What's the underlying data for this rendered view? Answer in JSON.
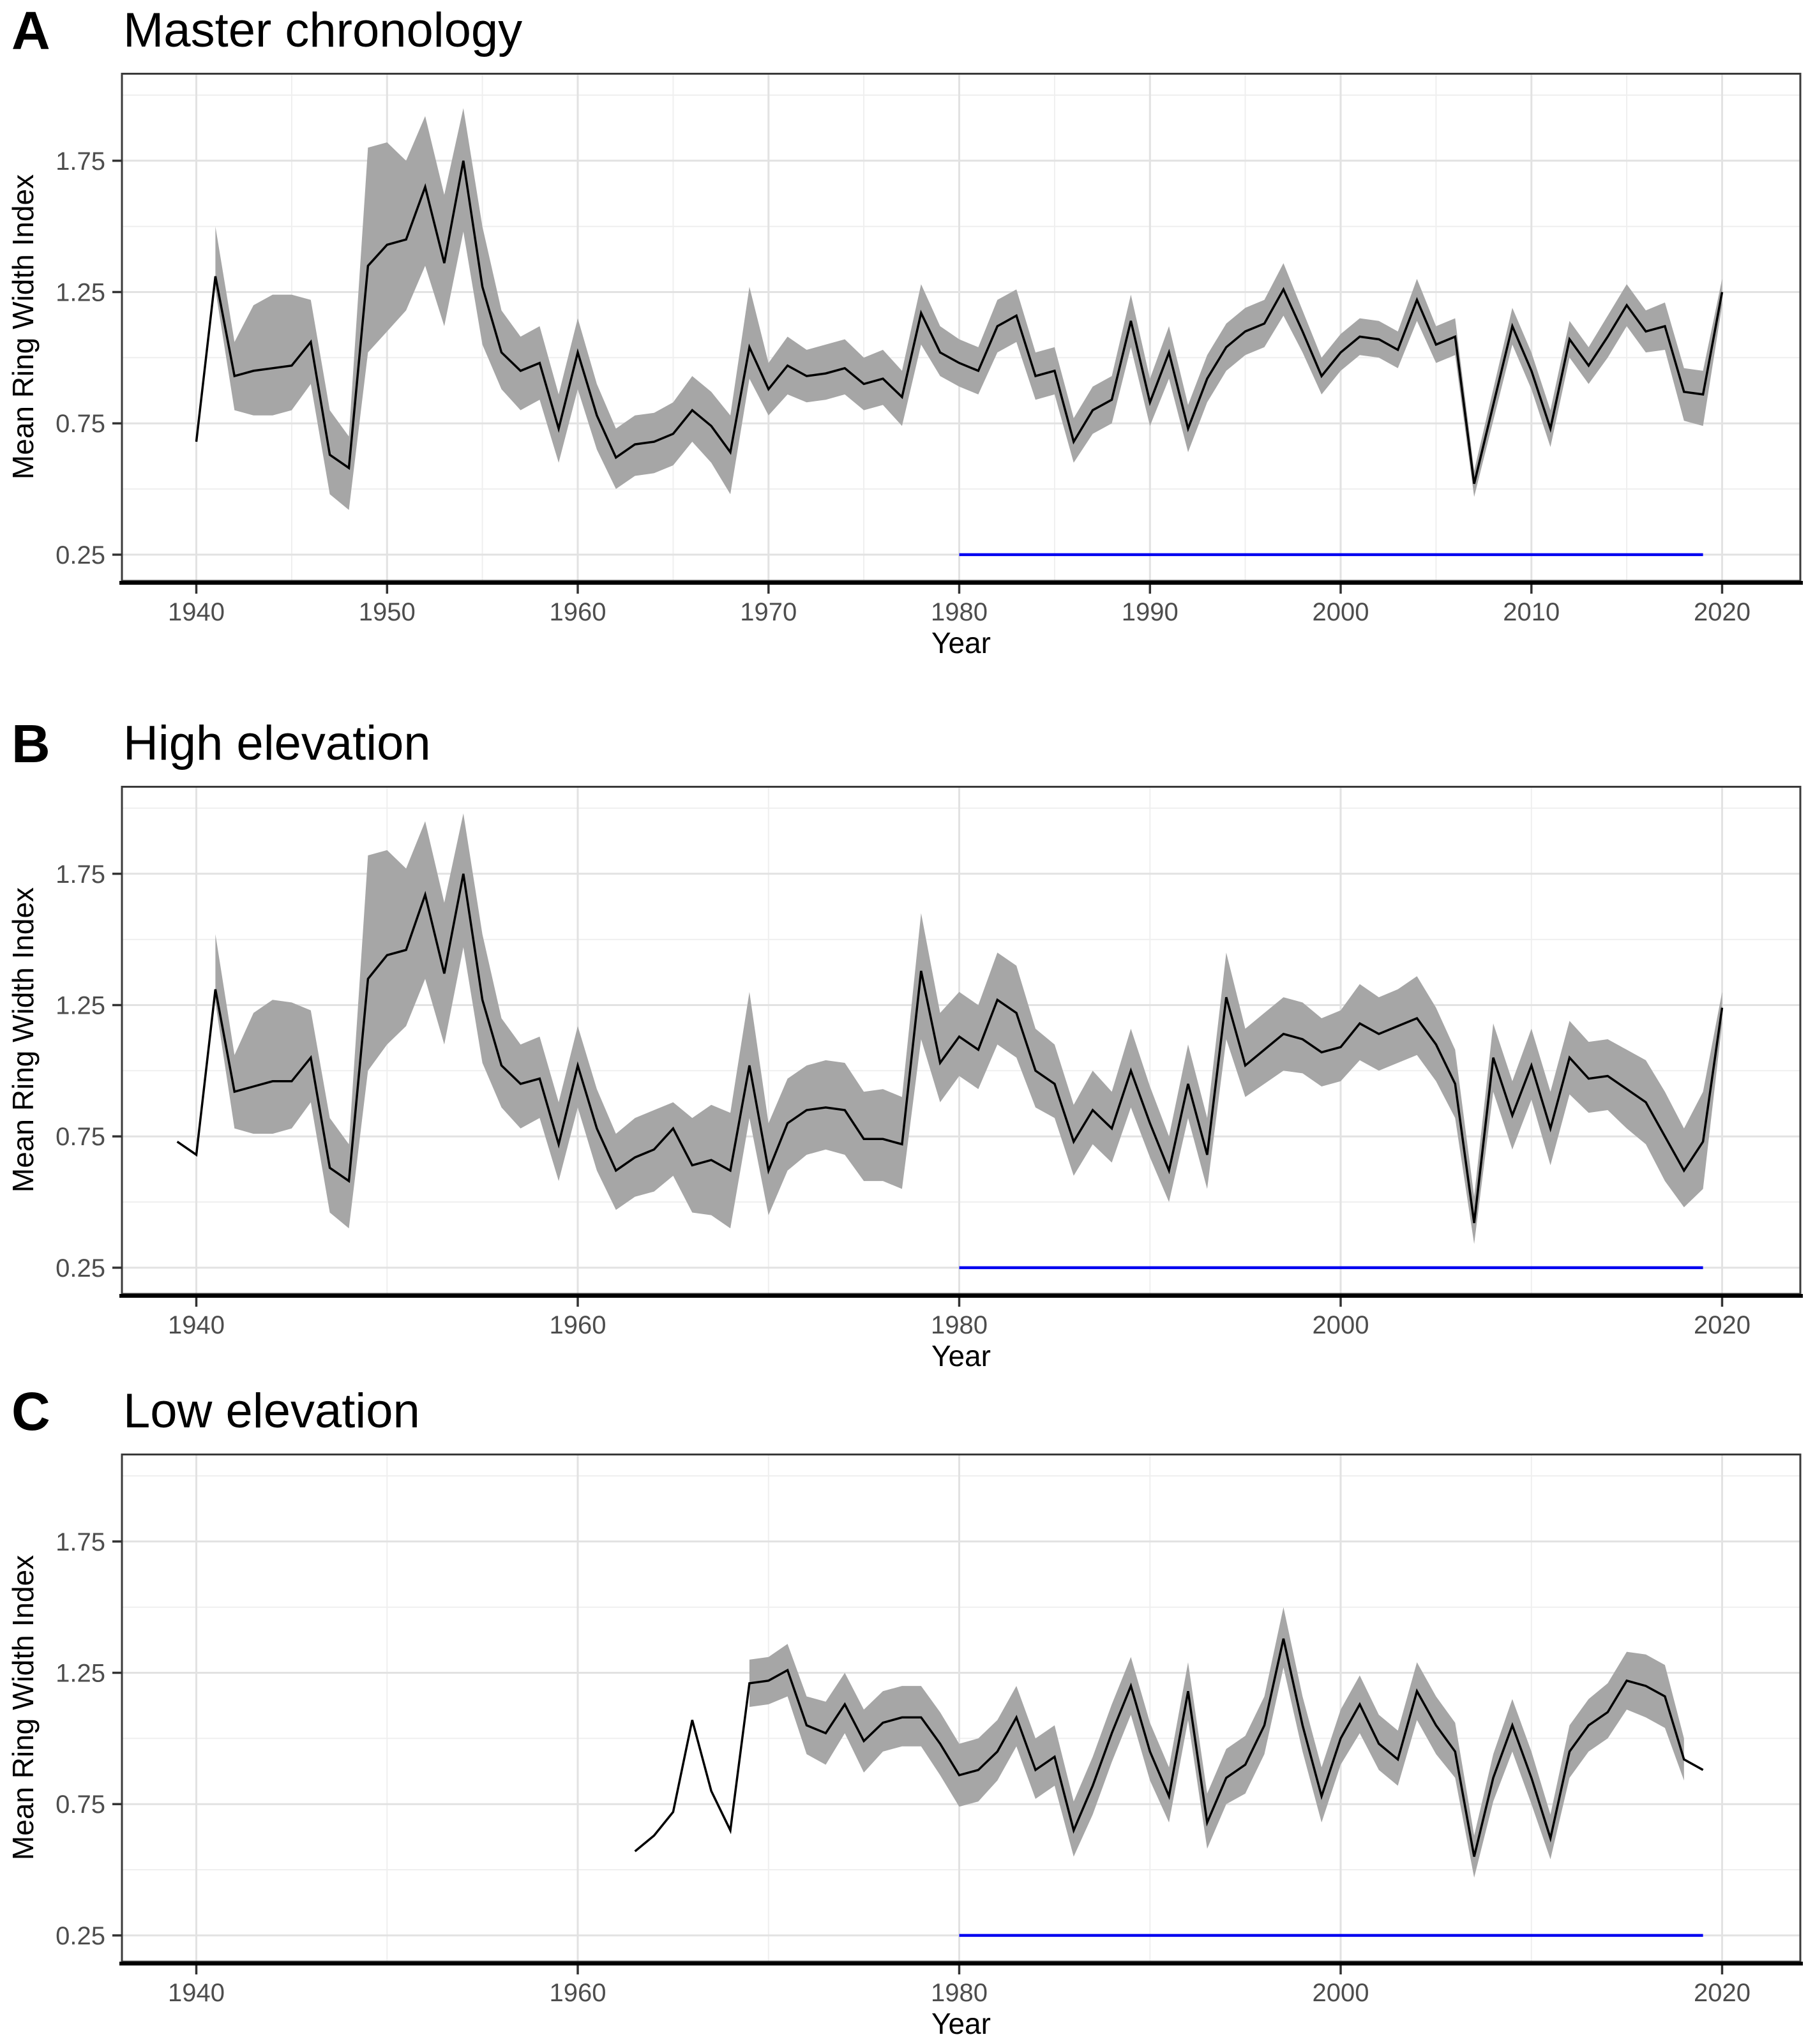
{
  "styles": {
    "background": "#ffffff",
    "line_color": "#000000",
    "ribbon_color": "#a6a6a6",
    "reference_color": "#0000f0",
    "grid_major": "#e2e2e2",
    "grid_minor": "#efefef",
    "panel_border": "#3a3a3a",
    "axis_line": "#000000",
    "tick_color": "#333333",
    "tick_label_color": "#4d4d4d"
  },
  "chart_data": [
    {
      "type": "line",
      "panel_letter": "A",
      "title": "Master chronology",
      "xlabel": "Year",
      "ylabel": "Mean Ring Width Index",
      "legend": "none",
      "grid": "on",
      "x_ticks": [
        1940,
        1950,
        1960,
        1970,
        1980,
        1990,
        2000,
        2010,
        2020
      ],
      "x_minor": [
        1945,
        1955,
        1965,
        1975,
        1985,
        1995,
        2005,
        2015
      ],
      "y_ticks": [
        0.25,
        0.75,
        1.25,
        1.75
      ],
      "y_tick_labels": [
        "0.25",
        "0.75",
        "1.25",
        "1.75"
      ],
      "y_minor": [
        0.5,
        1.0,
        1.5,
        2.0
      ],
      "xlim": [
        1936.1,
        2024.1
      ],
      "ylim": [
        0.15,
        2.085
      ],
      "reference_line": {
        "y": 0.25,
        "x_start": 1980,
        "x_end": 2019,
        "color": "#0000f0"
      },
      "series": {
        "name": "mean ring width index with confidence ribbon",
        "years": {
          "start": 1940,
          "end": 2020,
          "step": 1
        },
        "mean": [
          0.68,
          1.31,
          0.93,
          0.95,
          0.96,
          0.97,
          1.06,
          0.63,
          0.58,
          1.35,
          1.43,
          1.45,
          1.65,
          1.36,
          1.75,
          1.27,
          1.02,
          0.95,
          0.98,
          0.73,
          1.02,
          0.78,
          0.62,
          0.67,
          0.68,
          0.71,
          0.8,
          0.74,
          0.64,
          1.04,
          0.88,
          0.97,
          0.93,
          0.94,
          0.96,
          0.9,
          0.92,
          0.85,
          1.17,
          1.02,
          0.98,
          0.95,
          1.12,
          1.16,
          0.93,
          0.95,
          0.68,
          0.8,
          0.84,
          1.14,
          0.83,
          1.02,
          0.73,
          0.92,
          1.04,
          1.1,
          1.13,
          1.26,
          1.1,
          0.93,
          1.02,
          1.08,
          1.07,
          1.03,
          1.22,
          1.05,
          1.08,
          0.52,
          0.82,
          1.12,
          0.95,
          0.73,
          1.07,
          0.97,
          1.08,
          1.2,
          1.1,
          1.12,
          0.87,
          0.86,
          1.25
        ],
        "ci_lower": [
          null,
          1.26,
          0.8,
          0.78,
          0.78,
          0.8,
          0.9,
          0.48,
          0.42,
          1.02,
          1.1,
          1.18,
          1.35,
          1.12,
          1.48,
          1.05,
          0.88,
          0.8,
          0.84,
          0.6,
          0.88,
          0.65,
          0.5,
          0.55,
          0.56,
          0.59,
          0.68,
          0.6,
          0.48,
          0.92,
          0.78,
          0.86,
          0.83,
          0.84,
          0.86,
          0.8,
          0.82,
          0.74,
          1.05,
          0.93,
          0.89,
          0.86,
          1.02,
          1.06,
          0.84,
          0.86,
          0.6,
          0.71,
          0.75,
          1.04,
          0.74,
          0.92,
          0.64,
          0.83,
          0.95,
          1.01,
          1.04,
          1.16,
          1.02,
          0.86,
          0.95,
          1.01,
          1.0,
          0.96,
          1.14,
          0.98,
          1.01,
          0.47,
          0.76,
          1.05,
          0.88,
          0.66,
          1.0,
          0.9,
          1.0,
          1.12,
          1.02,
          1.03,
          0.76,
          0.74,
          1.2
        ],
        "ci_upper": [
          null,
          1.5,
          1.06,
          1.2,
          1.24,
          1.24,
          1.22,
          0.8,
          0.7,
          1.8,
          1.82,
          1.75,
          1.92,
          1.62,
          1.95,
          1.5,
          1.18,
          1.08,
          1.12,
          0.86,
          1.15,
          0.9,
          0.73,
          0.78,
          0.79,
          0.83,
          0.93,
          0.87,
          0.78,
          1.27,
          0.98,
          1.08,
          1.03,
          1.05,
          1.07,
          1.0,
          1.03,
          0.95,
          1.28,
          1.12,
          1.07,
          1.04,
          1.22,
          1.26,
          1.02,
          1.04,
          0.77,
          0.89,
          0.93,
          1.24,
          0.92,
          1.12,
          0.82,
          1.01,
          1.13,
          1.19,
          1.22,
          1.36,
          1.18,
          1.0,
          1.09,
          1.15,
          1.14,
          1.1,
          1.3,
          1.12,
          1.15,
          0.57,
          0.88,
          1.19,
          1.02,
          0.8,
          1.14,
          1.04,
          1.16,
          1.28,
          1.18,
          1.21,
          0.96,
          0.95,
          1.3
        ]
      }
    },
    {
      "type": "line",
      "panel_letter": "B",
      "title": "High elevation",
      "xlabel": "Year",
      "ylabel": "Mean Ring Width Index",
      "legend": "none",
      "grid": "on",
      "x_ticks": [
        1940,
        1960,
        1980,
        2000,
        2020
      ],
      "x_minor": [
        1950,
        1970,
        1990,
        2010
      ],
      "y_ticks": [
        0.25,
        0.75,
        1.25,
        1.75
      ],
      "y_tick_labels": [
        "0.25",
        "0.75",
        "1.25",
        "1.75"
      ],
      "y_minor": [
        0.5,
        1.0,
        1.5,
        2.0
      ],
      "xlim": [
        1936.1,
        2024.1
      ],
      "ylim": [
        0.15,
        2.085
      ],
      "reference_line": {
        "y": 0.25,
        "x_start": 1980,
        "x_end": 2019,
        "color": "#0000f0"
      },
      "series": {
        "name": "mean ring width index with confidence ribbon",
        "years": {
          "start": 1939,
          "end": 2020,
          "step": 1
        },
        "mean": [
          0.73,
          0.68,
          1.31,
          0.92,
          0.94,
          0.96,
          0.96,
          1.05,
          0.63,
          0.58,
          1.35,
          1.44,
          1.46,
          1.67,
          1.37,
          1.75,
          1.27,
          1.02,
          0.95,
          0.97,
          0.72,
          1.02,
          0.78,
          0.62,
          0.67,
          0.7,
          0.78,
          0.64,
          0.66,
          0.62,
          1.02,
          0.62,
          0.8,
          0.85,
          0.86,
          0.85,
          0.74,
          0.74,
          0.72,
          1.38,
          1.03,
          1.13,
          1.08,
          1.27,
          1.22,
          1.0,
          0.95,
          0.73,
          0.85,
          0.78,
          1.0,
          0.8,
          0.62,
          0.95,
          0.68,
          1.28,
          1.02,
          1.08,
          1.14,
          1.12,
          1.07,
          1.09,
          1.18,
          1.14,
          1.17,
          1.2,
          1.1,
          0.95,
          0.42,
          1.05,
          0.83,
          1.02,
          0.78,
          1.05,
          0.97,
          0.98,
          0.93,
          0.88,
          0.75,
          0.62,
          0.73,
          1.24
        ],
        "ci_lower": [
          null,
          null,
          1.26,
          0.78,
          0.76,
          0.76,
          0.78,
          0.88,
          0.46,
          0.4,
          1.0,
          1.1,
          1.17,
          1.35,
          1.1,
          1.47,
          1.03,
          0.86,
          0.78,
          0.82,
          0.58,
          0.86,
          0.62,
          0.47,
          0.52,
          0.54,
          0.6,
          0.46,
          0.45,
          0.4,
          0.82,
          0.45,
          0.62,
          0.68,
          0.7,
          0.68,
          0.58,
          0.58,
          0.55,
          1.12,
          0.88,
          0.98,
          0.93,
          1.1,
          1.05,
          0.86,
          0.82,
          0.6,
          0.72,
          0.65,
          0.86,
          0.67,
          0.5,
          0.82,
          0.55,
          1.12,
          0.9,
          0.95,
          1.0,
          0.99,
          0.94,
          0.96,
          1.04,
          1.0,
          1.03,
          1.06,
          0.96,
          0.82,
          0.34,
          0.92,
          0.7,
          0.89,
          0.64,
          0.91,
          0.84,
          0.85,
          0.78,
          0.72,
          0.58,
          0.48,
          0.55,
          1.18
        ],
        "ci_upper": [
          null,
          null,
          1.52,
          1.06,
          1.22,
          1.27,
          1.26,
          1.23,
          0.82,
          0.72,
          1.82,
          1.84,
          1.77,
          1.95,
          1.64,
          1.98,
          1.52,
          1.2,
          1.1,
          1.13,
          0.88,
          1.17,
          0.93,
          0.76,
          0.82,
          0.85,
          0.88,
          0.82,
          0.87,
          0.84,
          1.3,
          0.8,
          0.97,
          1.02,
          1.04,
          1.03,
          0.92,
          0.93,
          0.9,
          1.6,
          1.22,
          1.3,
          1.25,
          1.45,
          1.4,
          1.16,
          1.1,
          0.87,
          1.0,
          0.92,
          1.16,
          0.94,
          0.75,
          1.1,
          0.82,
          1.45,
          1.16,
          1.22,
          1.28,
          1.26,
          1.2,
          1.23,
          1.33,
          1.28,
          1.31,
          1.36,
          1.24,
          1.08,
          0.52,
          1.18,
          0.96,
          1.16,
          0.92,
          1.19,
          1.11,
          1.12,
          1.08,
          1.04,
          0.92,
          0.78,
          0.92,
          1.3
        ]
      }
    },
    {
      "type": "line",
      "panel_letter": "C",
      "title": "Low elevation",
      "xlabel": "Year",
      "ylabel": "Mean Ring Width Index",
      "legend": "none",
      "grid": "on",
      "x_ticks": [
        1940,
        1960,
        1980,
        2000,
        2020
      ],
      "x_minor": [
        1950,
        1970,
        1990,
        2010
      ],
      "y_ticks": [
        0.25,
        0.75,
        1.25,
        1.75
      ],
      "y_tick_labels": [
        "0.25",
        "0.75",
        "1.25",
        "1.75"
      ],
      "y_minor": [
        0.5,
        1.0,
        1.5,
        2.0
      ],
      "xlim": [
        1936.1,
        2024.1
      ],
      "ylim": [
        0.15,
        2.085
      ],
      "reference_line": {
        "y": 0.25,
        "x_start": 1980,
        "x_end": 2019,
        "color": "#0000f0"
      },
      "series": {
        "name": "mean ring width index with confidence ribbon",
        "years": {
          "start": 1963,
          "end": 2019,
          "step": 1
        },
        "mean": [
          0.57,
          0.63,
          0.72,
          1.07,
          0.8,
          0.65,
          1.21,
          1.22,
          1.26,
          1.05,
          1.02,
          1.13,
          0.99,
          1.06,
          1.08,
          1.08,
          0.98,
          0.86,
          0.88,
          0.95,
          1.08,
          0.88,
          0.93,
          0.65,
          0.82,
          1.02,
          1.2,
          0.95,
          0.78,
          1.18,
          0.68,
          0.85,
          0.9,
          1.05,
          1.38,
          1.05,
          0.78,
          1.0,
          1.13,
          0.98,
          0.92,
          1.18,
          1.05,
          0.95,
          0.55,
          0.85,
          1.05,
          0.85,
          0.62,
          0.95,
          1.05,
          1.1,
          1.22,
          1.2,
          1.16,
          0.92,
          0.88
        ],
        "ci_lower": [
          null,
          null,
          null,
          null,
          null,
          null,
          1.12,
          1.13,
          1.16,
          0.94,
          0.9,
          1.02,
          0.87,
          0.95,
          0.97,
          0.97,
          0.86,
          0.74,
          0.76,
          0.84,
          0.97,
          0.77,
          0.82,
          0.55,
          0.71,
          0.91,
          1.09,
          0.84,
          0.68,
          1.07,
          0.58,
          0.75,
          0.79,
          0.94,
          1.27,
          0.95,
          0.68,
          0.9,
          1.02,
          0.88,
          0.82,
          1.07,
          0.94,
          0.85,
          0.47,
          0.76,
          0.95,
          0.75,
          0.54,
          0.85,
          0.95,
          1.0,
          1.11,
          1.08,
          1.04,
          0.84,
          null
        ],
        "ci_upper": [
          null,
          null,
          null,
          null,
          null,
          null,
          1.3,
          1.31,
          1.36,
          1.16,
          1.14,
          1.25,
          1.11,
          1.18,
          1.2,
          1.2,
          1.1,
          0.98,
          1.0,
          1.07,
          1.2,
          1.0,
          1.05,
          0.76,
          0.93,
          1.13,
          1.31,
          1.06,
          0.89,
          1.29,
          0.79,
          0.96,
          1.01,
          1.16,
          1.5,
          1.16,
          0.89,
          1.11,
          1.24,
          1.09,
          1.03,
          1.29,
          1.16,
          1.06,
          0.63,
          0.94,
          1.15,
          0.95,
          0.71,
          1.05,
          1.15,
          1.21,
          1.33,
          1.32,
          1.28,
          1.0,
          null
        ]
      }
    }
  ]
}
